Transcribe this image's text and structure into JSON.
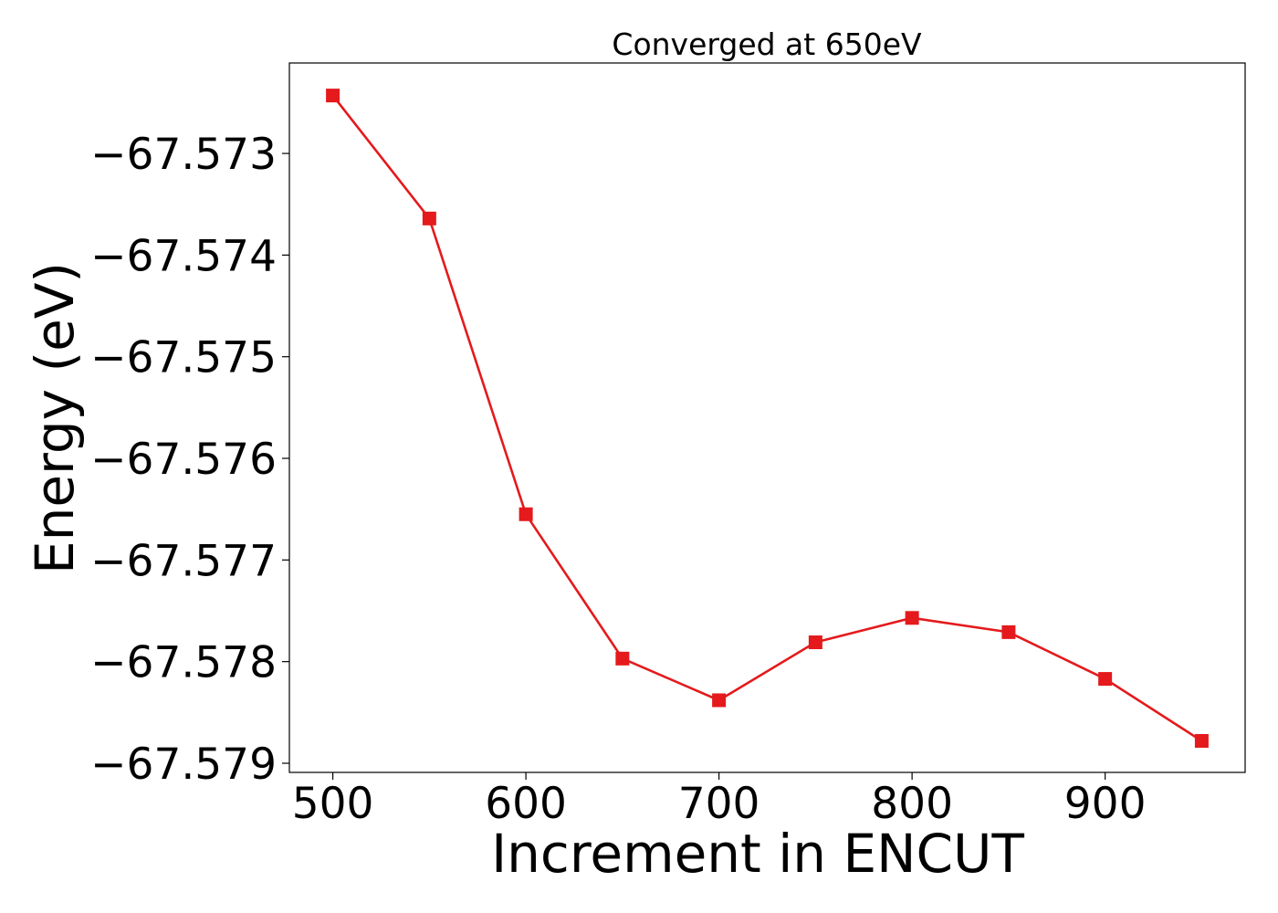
{
  "chart_data": {
    "type": "line",
    "title": "Converged at 650eV",
    "xlabel": "Increment in ENCUT",
    "ylabel": "Energy (eV)",
    "x": [
      500,
      550,
      600,
      650,
      700,
      750,
      800,
      850,
      900,
      950
    ],
    "series": [
      {
        "values": [
          -67.57243,
          -67.57364,
          -67.57655,
          -67.57797,
          -67.57838,
          -67.57781,
          -67.57757,
          -67.57771,
          -67.57817,
          -67.57878
        ],
        "color": "#e41a1c",
        "marker": "square"
      }
    ],
    "xlim": [
      477.5,
      972.5
    ],
    "ylim": [
      -67.57909,
      -67.57211
    ],
    "xticks": [
      500,
      600,
      700,
      800,
      900
    ],
    "yticks": [
      -67.573,
      -67.574,
      -67.575,
      -67.576,
      -67.577,
      -67.578,
      -67.579
    ],
    "xtick_labels": [
      "500",
      "600",
      "700",
      "800",
      "900"
    ],
    "ytick_labels": [
      "−67.573",
      "−67.574",
      "−67.575",
      "−67.576",
      "−67.577",
      "−67.578",
      "−67.579"
    ],
    "grid": false,
    "legend": "none"
  }
}
